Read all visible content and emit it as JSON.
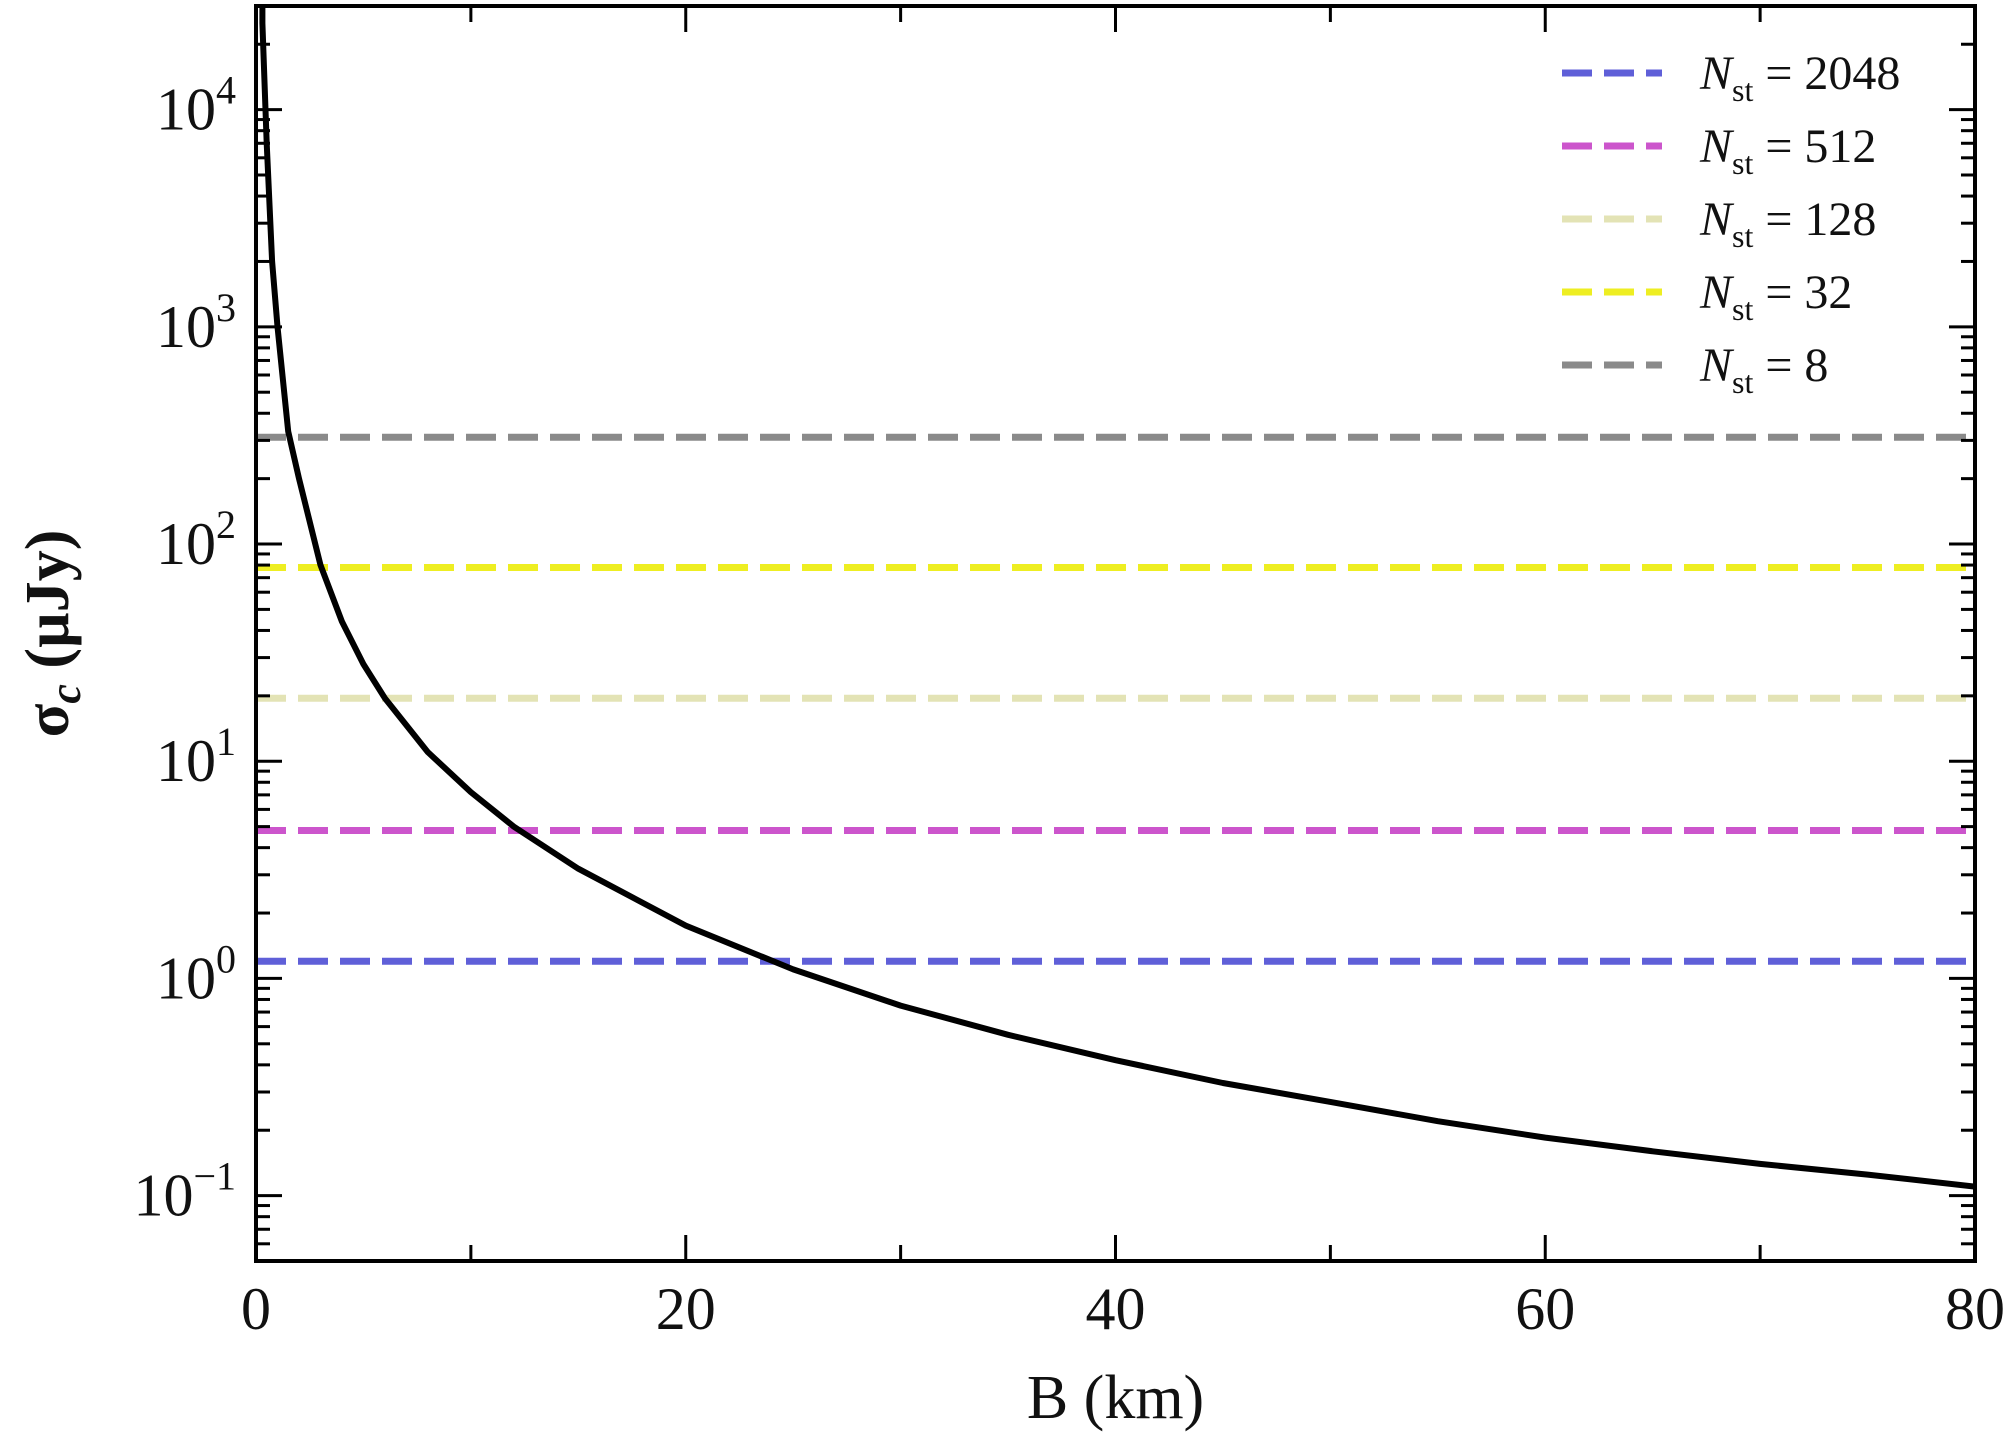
{
  "chart_data": {
    "type": "line",
    "title": "",
    "xlabel": "B (km)",
    "ylabel_main": "σ",
    "ylabel_sub": "c",
    "ylabel_rest": " (µJy)",
    "xlim": [
      0,
      80
    ],
    "ylim": [
      0.05,
      30000
    ],
    "yscale": "log",
    "grid": false,
    "legend_position": "top-right",
    "x_ticks": [
      {
        "value": 0,
        "label": "0"
      },
      {
        "value": 20,
        "label": "20"
      },
      {
        "value": 40,
        "label": "40"
      },
      {
        "value": 60,
        "label": "60"
      },
      {
        "value": 80,
        "label": "80"
      }
    ],
    "y_ticks": [
      {
        "value": 0.1,
        "base": "10",
        "exp": "−1"
      },
      {
        "value": 1,
        "base": "10",
        "exp": "0"
      },
      {
        "value": 10,
        "base": "10",
        "exp": "1"
      },
      {
        "value": 100,
        "base": "10",
        "exp": "2"
      },
      {
        "value": 1000,
        "base": "10",
        "exp": "3"
      },
      {
        "value": 10000,
        "base": "10",
        "exp": "4"
      }
    ],
    "curve": {
      "color": "#000000",
      "x": [
        0.3,
        0.5,
        0.75,
        1,
        1.5,
        2,
        3,
        4,
        5,
        6,
        8,
        10,
        12,
        15,
        20,
        25,
        30,
        35,
        40,
        45,
        50,
        55,
        60,
        65,
        70,
        75,
        80
      ],
      "y": [
        25000,
        7000,
        2000,
        1000,
        330,
        200,
        80,
        44,
        28,
        19.5,
        11,
        7.2,
        5,
        3.2,
        1.75,
        1.1,
        0.75,
        0.55,
        0.42,
        0.33,
        0.27,
        0.22,
        0.185,
        0.16,
        0.14,
        0.125,
        0.11
      ]
    },
    "series": [
      {
        "prefix": "N",
        "sub": "st",
        "value_text": " = 2048",
        "y": 1.2,
        "color": "#5f5fd8"
      },
      {
        "prefix": "N",
        "sub": "st",
        "value_text": " = 512",
        "y": 4.8,
        "color": "#cc55cc"
      },
      {
        "prefix": "N",
        "sub": "st",
        "value_text": " = 128",
        "y": 19.5,
        "color": "#e3e3b5"
      },
      {
        "prefix": "N",
        "sub": "st",
        "value_text": " = 32",
        "y": 78,
        "color": "#eeee22"
      },
      {
        "prefix": "N",
        "sub": "st",
        "value_text": " = 8",
        "y": 310,
        "color": "#8a8a8a"
      }
    ]
  }
}
